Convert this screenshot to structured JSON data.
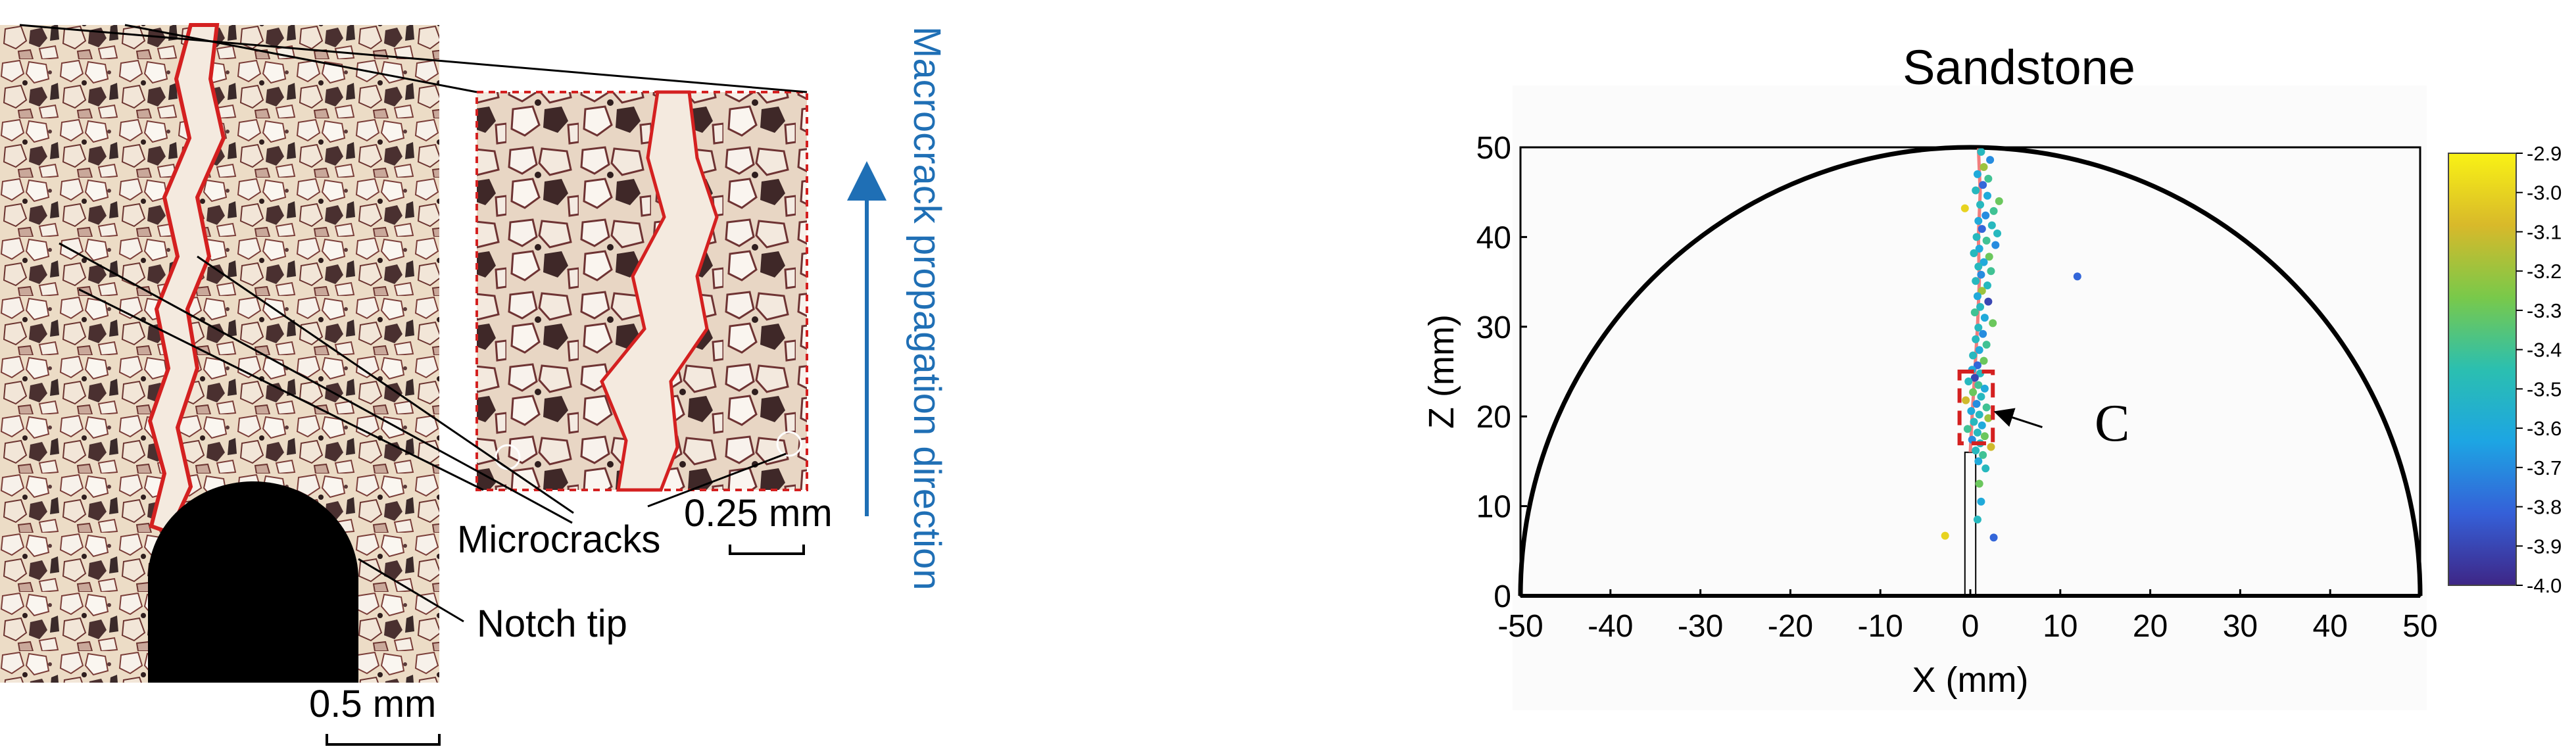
{
  "left_panel": {
    "labels": {
      "microcracks": "Microcracks",
      "notch_tip": "Notch tip",
      "inset_scale": "0.25 mm",
      "main_scale": "0.5 mm",
      "direction": "Macrocrack propagation direction"
    },
    "colors": {
      "crack": "#d42020",
      "arrow": "#1f6fb5",
      "background": "#efe4d6"
    }
  },
  "chart_data": {
    "type": "scatter",
    "title": "Sandstone",
    "xlabel": "X (mm)",
    "ylabel": "Z (mm)",
    "xlim": [
      -50,
      50
    ],
    "ylim": [
      0,
      50
    ],
    "xticks": [
      -50,
      -40,
      -30,
      -20,
      -10,
      0,
      10,
      20,
      30,
      40,
      50
    ],
    "yticks": [
      0,
      10,
      20,
      30,
      40,
      50
    ],
    "grid": false,
    "boundary": "semicircle of radius 50",
    "colorbar": {
      "min": -4.0,
      "max": -2.9,
      "ticks": [
        -2.9,
        -3.0,
        -3.1,
        -3.2,
        -3.3,
        -3.4,
        -3.5,
        -3.6,
        -3.7,
        -3.8,
        -3.9,
        -4.0
      ],
      "colormap": [
        "#3e2686",
        "#3560d8",
        "#1da5e3",
        "#2bbfb0",
        "#79c94a",
        "#d8b92a",
        "#f9f215"
      ]
    },
    "annotation": {
      "label": "C",
      "box": {
        "x": [
          -1.2,
          2.5
        ],
        "z": [
          17.0,
          25.0
        ]
      },
      "arrow_from": [
        8.0,
        18.8
      ],
      "arrow_to": [
        2.8,
        20.5
      ]
    },
    "crack_path": [
      [
        0.0,
        16.0
      ],
      [
        0.2,
        20.0
      ],
      [
        0.5,
        25.0
      ],
      [
        0.8,
        30.0
      ],
      [
        1.0,
        35.0
      ],
      [
        0.9,
        40.0
      ],
      [
        1.1,
        45.0
      ],
      [
        0.9,
        50.0
      ]
    ],
    "notch": {
      "x": [
        -0.6,
        0.6
      ],
      "z": [
        0,
        16
      ]
    },
    "points": [
      {
        "x": 1.2,
        "z": 49.5,
        "m": -3.5
      },
      {
        "x": 2.2,
        "z": 48.6,
        "m": -3.7
      },
      {
        "x": 1.5,
        "z": 47.8,
        "m": -3.2
      },
      {
        "x": 0.8,
        "z": 47.0,
        "m": -3.6
      },
      {
        "x": 2.0,
        "z": 46.5,
        "m": -3.4
      },
      {
        "x": 1.4,
        "z": 45.8,
        "m": -3.8
      },
      {
        "x": 0.6,
        "z": 45.2,
        "m": -3.5
      },
      {
        "x": 1.9,
        "z": 44.6,
        "m": -3.6
      },
      {
        "x": 3.2,
        "z": 44.0,
        "m": -3.3
      },
      {
        "x": 1.1,
        "z": 43.6,
        "m": -3.5
      },
      {
        "x": -0.6,
        "z": 43.2,
        "m": -3.0
      },
      {
        "x": 2.6,
        "z": 42.9,
        "m": -3.4
      },
      {
        "x": 1.7,
        "z": 42.4,
        "m": -3.7
      },
      {
        "x": 0.9,
        "z": 41.8,
        "m": -3.6
      },
      {
        "x": 2.4,
        "z": 41.3,
        "m": -3.5
      },
      {
        "x": 1.3,
        "z": 40.9,
        "m": -3.8
      },
      {
        "x": 3.0,
        "z": 40.4,
        "m": -3.5
      },
      {
        "x": 0.7,
        "z": 40.0,
        "m": -3.5
      },
      {
        "x": 1.8,
        "z": 39.6,
        "m": -3.4
      },
      {
        "x": 2.8,
        "z": 39.1,
        "m": -3.7
      },
      {
        "x": 1.0,
        "z": 38.7,
        "m": -3.6
      },
      {
        "x": 0.4,
        "z": 38.2,
        "m": -3.5
      },
      {
        "x": 2.1,
        "z": 37.8,
        "m": -3.3
      },
      {
        "x": 1.5,
        "z": 37.2,
        "m": -3.6
      },
      {
        "x": 0.9,
        "z": 36.7,
        "m": -3.5
      },
      {
        "x": 2.3,
        "z": 36.2,
        "m": -3.4
      },
      {
        "x": 1.2,
        "z": 35.8,
        "m": -3.7
      },
      {
        "x": 11.9,
        "z": 35.6,
        "m": -3.8
      },
      {
        "x": 0.6,
        "z": 35.1,
        "m": -3.5
      },
      {
        "x": 1.9,
        "z": 34.6,
        "m": -3.5
      },
      {
        "x": 1.3,
        "z": 34.0,
        "m": -3.2
      },
      {
        "x": 0.8,
        "z": 33.4,
        "m": -3.6
      },
      {
        "x": 2.0,
        "z": 32.8,
        "m": -3.9
      },
      {
        "x": 1.1,
        "z": 32.2,
        "m": -3.5
      },
      {
        "x": 0.5,
        "z": 31.6,
        "m": -3.4
      },
      {
        "x": 1.6,
        "z": 31.0,
        "m": -3.6
      },
      {
        "x": 2.5,
        "z": 30.4,
        "m": -3.3
      },
      {
        "x": 0.9,
        "z": 29.9,
        "m": -3.5
      },
      {
        "x": 1.4,
        "z": 29.2,
        "m": -3.7
      },
      {
        "x": 0.6,
        "z": 28.6,
        "m": -3.5
      },
      {
        "x": 1.8,
        "z": 28.0,
        "m": -3.4
      },
      {
        "x": 1.0,
        "z": 27.4,
        "m": -3.6
      },
      {
        "x": 0.3,
        "z": 26.8,
        "m": -3.5
      },
      {
        "x": 1.5,
        "z": 26.2,
        "m": -3.3
      },
      {
        "x": 0.8,
        "z": 25.7,
        "m": -3.8
      },
      {
        "x": 0.2,
        "z": 25.2,
        "m": -3.6
      },
      {
        "x": 1.1,
        "z": 24.8,
        "m": -3.5
      },
      {
        "x": 0.5,
        "z": 24.3,
        "m": -3.9
      },
      {
        "x": -0.2,
        "z": 23.9,
        "m": -3.5
      },
      {
        "x": 0.9,
        "z": 23.5,
        "m": -3.4
      },
      {
        "x": 1.6,
        "z": 23.1,
        "m": -3.6
      },
      {
        "x": 0.3,
        "z": 22.7,
        "m": -3.3
      },
      {
        "x": 1.2,
        "z": 22.2,
        "m": -3.5
      },
      {
        "x": -0.5,
        "z": 21.8,
        "m": -3.1
      },
      {
        "x": 0.7,
        "z": 21.4,
        "m": -3.7
      },
      {
        "x": 1.8,
        "z": 21.0,
        "m": -3.4
      },
      {
        "x": 0.1,
        "z": 20.6,
        "m": -3.6
      },
      {
        "x": 1.0,
        "z": 20.2,
        "m": -3.5
      },
      {
        "x": 2.0,
        "z": 19.8,
        "m": -3.2
      },
      {
        "x": 0.4,
        "z": 19.4,
        "m": -3.5
      },
      {
        "x": 1.3,
        "z": 19.0,
        "m": -3.6
      },
      {
        "x": -0.3,
        "z": 18.6,
        "m": -3.4
      },
      {
        "x": 0.8,
        "z": 18.2,
        "m": -3.5
      },
      {
        "x": 1.6,
        "z": 17.8,
        "m": -3.3
      },
      {
        "x": 0.2,
        "z": 17.4,
        "m": -3.7
      },
      {
        "x": 1.1,
        "z": 17.0,
        "m": -3.5
      },
      {
        "x": 2.3,
        "z": 16.6,
        "m": -3.1
      },
      {
        "x": 0.6,
        "z": 16.2,
        "m": -3.5
      },
      {
        "x": 1.4,
        "z": 15.7,
        "m": -3.4
      },
      {
        "x": 0.9,
        "z": 15.0,
        "m": -3.6
      },
      {
        "x": 1.7,
        "z": 14.2,
        "m": -3.5
      },
      {
        "x": 1.0,
        "z": 12.5,
        "m": -3.3
      },
      {
        "x": 1.2,
        "z": 10.5,
        "m": -3.6
      },
      {
        "x": 0.8,
        "z": 8.5,
        "m": -3.5
      },
      {
        "x": -2.8,
        "z": 6.7,
        "m": -3.0
      },
      {
        "x": 2.6,
        "z": 6.5,
        "m": -3.8
      }
    ]
  }
}
